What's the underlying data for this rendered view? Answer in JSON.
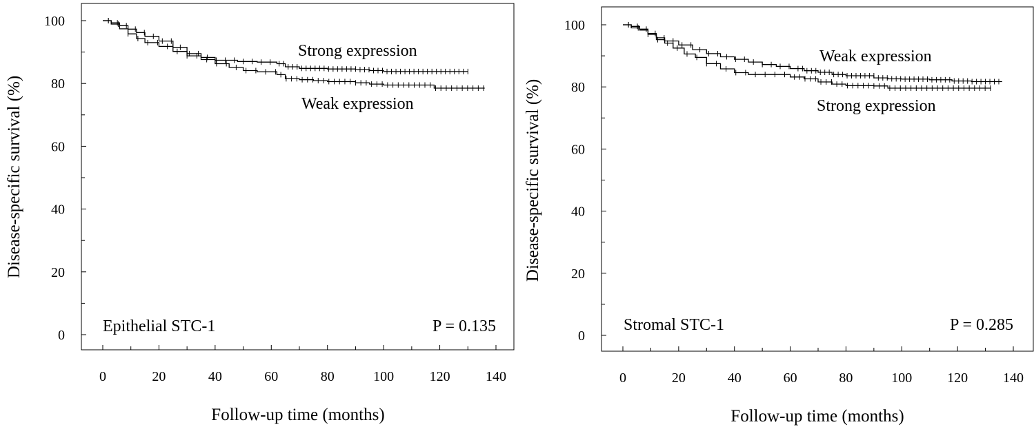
{
  "chart_data": [
    {
      "type": "line",
      "subtype": "kaplan-meier",
      "xlabel": "Follow-up time (months)",
      "ylabel": "Disease-specific survival (%)",
      "xlim": [
        0,
        140
      ],
      "ylim": [
        0,
        100
      ],
      "xticks": [
        0,
        20,
        40,
        60,
        80,
        100,
        120,
        140
      ],
      "yticks": [
        0,
        20,
        40,
        60,
        80,
        100
      ],
      "panel_label": "Epithelial STC-1",
      "p_value": "P = 0.135",
      "series": [
        {
          "name": "Strong expression",
          "x": [
            0,
            3,
            6,
            9,
            12,
            15,
            20,
            25,
            30,
            35,
            40,
            48,
            55,
            62,
            65,
            70,
            80,
            90,
            95,
            100,
            110,
            120,
            130
          ],
          "y": [
            100,
            99.3,
            98.4,
            97.3,
            96.2,
            95,
            93.5,
            91.5,
            89.5,
            88.3,
            87.4,
            87,
            86.8,
            86.3,
            85.3,
            84.8,
            84.6,
            84.4,
            84.1,
            83.8,
            83.8,
            83.8,
            83.8
          ]
        },
        {
          "name": "Weak expression",
          "x": [
            0,
            3,
            6,
            9,
            12,
            15,
            20,
            25,
            30,
            35,
            40,
            45,
            50,
            55,
            62,
            65,
            70,
            75,
            80,
            90,
            95,
            100,
            110,
            115,
            118,
            125,
            136
          ],
          "y": [
            100,
            98.9,
            97.4,
            95.8,
            94.3,
            93,
            91.8,
            90.2,
            88.8,
            87.6,
            86.3,
            85.1,
            84.1,
            83.7,
            82.8,
            81.5,
            81.2,
            80.9,
            80.6,
            80.2,
            79.8,
            79.5,
            79.5,
            79.5,
            78.5,
            78.5,
            78.5
          ]
        }
      ],
      "annotations": {
        "upper": "Strong expression",
        "lower": "Weak expression"
      }
    },
    {
      "type": "line",
      "subtype": "kaplan-meier",
      "xlabel": "Follow-up time (months)",
      "ylabel": "Disease-specific survival (%)",
      "xlim": [
        0,
        140
      ],
      "ylim": [
        0,
        100
      ],
      "xticks": [
        0,
        20,
        40,
        60,
        80,
        100,
        120,
        140
      ],
      "yticks": [
        0,
        20,
        40,
        60,
        80,
        100
      ],
      "panel_label": "Stromal STC-1",
      "p_value": "P = 0.285",
      "series": [
        {
          "name": "Weak expression",
          "x": [
            0,
            3,
            6,
            9,
            12,
            15,
            20,
            25,
            30,
            35,
            40,
            45,
            50,
            55,
            60,
            65,
            70,
            75,
            80,
            90,
            95,
            100,
            110,
            118,
            125,
            136
          ],
          "y": [
            100,
            99.5,
            98.6,
            97.2,
            95.8,
            94.8,
            93.5,
            92,
            90.7,
            89.7,
            88.9,
            88,
            87.2,
            86.6,
            85.9,
            85.2,
            84.7,
            84,
            83.6,
            82.9,
            82.6,
            82.5,
            82.3,
            81.9,
            81.7,
            81.7
          ]
        },
        {
          "name": "Strong expression",
          "x": [
            0,
            3,
            6,
            9,
            12,
            15,
            18,
            22,
            26,
            30,
            35,
            40,
            45,
            55,
            60,
            65,
            70,
            75,
            80,
            90,
            95,
            110,
            132
          ],
          "y": [
            100,
            99,
            98.3,
            96.9,
            95.2,
            94.1,
            92.5,
            90.6,
            89.5,
            87.5,
            85.8,
            84.6,
            84,
            84,
            83.2,
            82.6,
            81.6,
            80.9,
            80.4,
            80.3,
            79.6,
            79.6,
            79.6
          ]
        }
      ],
      "annotations": {
        "upper": "Weak expression",
        "lower": "Strong expression"
      }
    }
  ]
}
